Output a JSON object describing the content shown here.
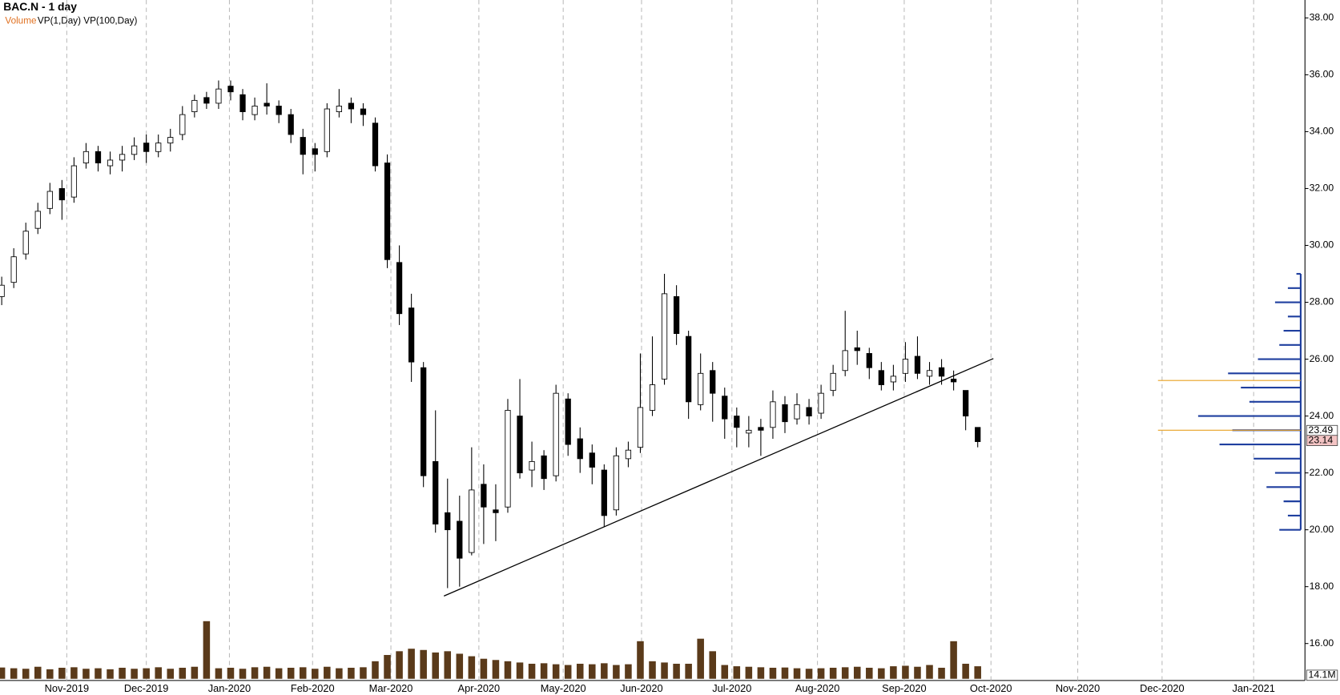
{
  "chart_data": {
    "type": "candlestick",
    "title": "BAC.N - 1 day",
    "legend": {
      "volume": "Volume",
      "profiles": "VP(1,Day) VP(100,Day)"
    },
    "legend_color": "#e07020",
    "up_color": "#ffffff",
    "down_color": "#000000",
    "grid": true,
    "xlim": [
      0,
      108.3
    ],
    "xticks": [
      {
        "value": 5.4,
        "label": "Nov-2019"
      },
      {
        "value": 12,
        "label": "Dec-2019"
      },
      {
        "value": 18.9,
        "label": "Jan-2020"
      },
      {
        "value": 25.8,
        "label": "Feb-2020"
      },
      {
        "value": 32.3,
        "label": "Mar-2020"
      },
      {
        "value": 39.6,
        "label": "Apr-2020"
      },
      {
        "value": 46.6,
        "label": "May-2020"
      },
      {
        "value": 53.1,
        "label": "Jun-2020"
      },
      {
        "value": 60.6,
        "label": "Jul-2020"
      },
      {
        "value": 67.7,
        "label": "Aug-2020"
      },
      {
        "value": 74.9,
        "label": "Sep-2020"
      },
      {
        "value": 82.1,
        "label": "Oct-2020"
      },
      {
        "value": 89.3,
        "label": "Nov-2020"
      },
      {
        "value": 96.3,
        "label": "Dec-2020"
      },
      {
        "value": 103.9,
        "label": "Jan-2021"
      }
    ],
    "ylim": [
      14.76,
      38.63
    ],
    "yticks": [
      {
        "value": 16,
        "label": "16.00"
      },
      {
        "value": 18,
        "label": "18.00"
      },
      {
        "value": 20,
        "label": "20.00"
      },
      {
        "value": 22,
        "label": "22.00"
      },
      {
        "value": 24,
        "label": "24.00"
      },
      {
        "value": 26,
        "label": "26.00"
      },
      {
        "value": 28,
        "label": "28.00"
      },
      {
        "value": 30,
        "label": "30.00"
      },
      {
        "value": 32,
        "label": "32.00"
      },
      {
        "value": 34,
        "label": "34.00"
      },
      {
        "value": 36,
        "label": "36.00"
      },
      {
        "value": 38,
        "label": "38.00"
      }
    ],
    "open": [
      28.2,
      28.7,
      29.7,
      30.6,
      31.3,
      32.0,
      31.7,
      32.9,
      33.3,
      32.8,
      33.0,
      33.2,
      33.6,
      33.3,
      33.6,
      33.9,
      34.7,
      35.2,
      35.0,
      35.6,
      35.3,
      34.6,
      35.0,
      34.9,
      34.6,
      33.8,
      33.4,
      33.3,
      34.7,
      35.0,
      34.8,
      34.3,
      32.9,
      29.4,
      27.8,
      25.7,
      22.4,
      20.6,
      20.3,
      19.2,
      21.6,
      20.7,
      20.8,
      24.0,
      22.1,
      22.6,
      21.9,
      24.6,
      23.2,
      22.7,
      22.1,
      20.7,
      22.5,
      22.9,
      24.2,
      25.3,
      28.2,
      26.8,
      24.4,
      25.6,
      24.7,
      24.0,
      23.4,
      23.6,
      23.6,
      24.4,
      23.9,
      24.3,
      24.1,
      24.9,
      25.6,
      26.4,
      26.2,
      25.6,
      25.2,
      25.5,
      26.1,
      25.4,
      25.7,
      25.3,
      24.9,
      23.6
    ],
    "high": [
      28.9,
      29.9,
      30.8,
      31.5,
      32.2,
      32.3,
      33.1,
      33.6,
      33.5,
      33.3,
      33.5,
      33.8,
      33.9,
      33.9,
      34.1,
      34.9,
      35.3,
      35.4,
      35.8,
      35.8,
      35.5,
      35.2,
      35.7,
      35.1,
      34.8,
      34.1,
      33.6,
      35.0,
      35.5,
      35.2,
      35.0,
      34.5,
      33.2,
      30.0,
      28.3,
      25.9,
      24.2,
      21.8,
      21.2,
      22.9,
      22.3,
      21.6,
      24.6,
      25.3,
      23.1,
      22.8,
      25.1,
      24.8,
      23.6,
      23.0,
      22.3,
      22.9,
      23.1,
      26.2,
      26.8,
      29.0,
      28.6,
      27.0,
      26.2,
      25.9,
      25.0,
      24.3,
      24.0,
      23.9,
      24.9,
      24.7,
      24.8,
      24.6,
      25.1,
      25.8,
      27.7,
      27.0,
      26.4,
      25.9,
      25.8,
      26.6,
      26.8,
      25.9,
      26.0,
      25.6,
      24.9,
      23.6
    ],
    "low": [
      27.9,
      28.5,
      29.5,
      30.4,
      31.1,
      30.9,
      31.5,
      32.7,
      32.6,
      32.5,
      32.6,
      33.0,
      32.9,
      33.1,
      33.3,
      33.7,
      34.5,
      34.8,
      34.8,
      35.1,
      34.4,
      34.4,
      34.6,
      34.3,
      33.6,
      32.5,
      32.6,
      33.1,
      34.5,
      34.3,
      34.2,
      32.6,
      29.2,
      27.2,
      25.2,
      21.5,
      19.9,
      17.95,
      18.0,
      19.1,
      19.5,
      19.6,
      20.6,
      21.8,
      21.5,
      21.4,
      21.7,
      22.6,
      22.0,
      21.6,
      20.1,
      20.5,
      22.2,
      22.7,
      24.0,
      25.1,
      26.5,
      23.9,
      24.2,
      23.8,
      23.2,
      22.9,
      22.9,
      22.6,
      23.2,
      23.4,
      23.7,
      23.7,
      23.9,
      24.7,
      25.4,
      25.8,
      25.3,
      24.9,
      24.9,
      25.2,
      25.3,
      25.1,
      25.1,
      24.9,
      23.5,
      22.9
    ],
    "close": [
      28.6,
      29.6,
      30.5,
      31.2,
      31.9,
      31.6,
      32.8,
      33.3,
      32.9,
      33.0,
      33.2,
      33.5,
      33.3,
      33.6,
      33.8,
      34.6,
      35.1,
      35.0,
      35.5,
      35.4,
      34.7,
      34.9,
      34.9,
      34.6,
      33.9,
      33.2,
      33.2,
      34.8,
      34.9,
      34.8,
      34.6,
      32.8,
      29.5,
      27.6,
      25.9,
      21.9,
      20.2,
      20.0,
      19.0,
      21.4,
      20.8,
      20.6,
      24.2,
      22.0,
      22.4,
      21.8,
      24.8,
      23.0,
      22.5,
      22.2,
      20.5,
      22.6,
      22.8,
      24.3,
      25.1,
      28.3,
      26.9,
      24.5,
      25.5,
      24.8,
      23.9,
      23.6,
      23.5,
      23.5,
      24.5,
      23.8,
      24.4,
      24.0,
      24.8,
      25.5,
      26.3,
      26.3,
      25.7,
      25.1,
      25.4,
      26.0,
      25.5,
      25.6,
      25.4,
      25.2,
      24.0,
      23.1
    ],
    "volume": [
      45,
      42,
      40,
      48,
      38,
      44,
      46,
      40,
      42,
      38,
      44,
      40,
      42,
      46,
      40,
      44,
      48,
      230,
      42,
      44,
      40,
      46,
      48,
      42,
      44,
      46,
      40,
      48,
      42,
      44,
      46,
      70,
      95,
      110,
      120,
      115,
      105,
      110,
      100,
      90,
      80,
      75,
      70,
      65,
      60,
      62,
      58,
      55,
      60,
      58,
      62,
      55,
      58,
      150,
      70,
      65,
      60,
      60,
      160,
      110,
      55,
      50,
      48,
      46,
      44,
      45,
      42,
      40,
      42,
      44,
      46,
      48,
      44,
      42,
      50,
      52,
      48,
      55,
      44,
      150,
      60,
      50
    ],
    "volume_ylim": [
      0,
      300
    ],
    "volume_color": "#5a3a1a",
    "volume_marker": {
      "value": 14.1,
      "label": "14.1M"
    },
    "price_markers": [
      23.49,
      23.14
    ],
    "trendline": {
      "x": [
        36.7,
        82.3
      ],
      "y": [
        17.67,
        26.02
      ],
      "color": "#000000"
    },
    "volume_profile": {
      "color": "#1f3f9f",
      "levels": [
        20.0,
        20.5,
        21.0,
        21.5,
        22.0,
        22.5,
        23.0,
        23.5,
        24.0,
        24.5,
        25.0,
        25.5,
        26.0,
        26.5,
        27.0,
        27.5,
        28.0,
        28.5,
        29.0
      ],
      "values": [
        25,
        15,
        20,
        40,
        30,
        55,
        95,
        80,
        120,
        60,
        70,
        85,
        50,
        25,
        20,
        15,
        30,
        15,
        5
      ],
      "xlim": [
        0,
        130
      ]
    },
    "poc": {
      "levels": [
        25.25,
        23.5
      ],
      "color": "#e8a020"
    }
  }
}
